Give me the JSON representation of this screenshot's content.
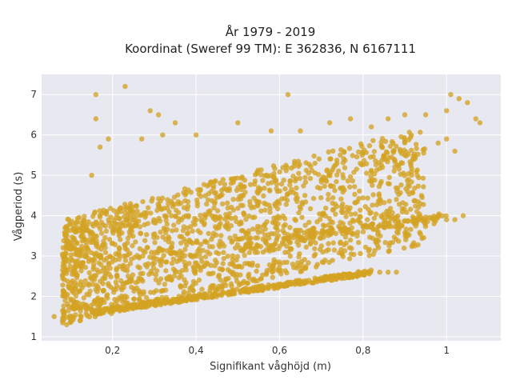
{
  "chart_data": {
    "type": "scatter",
    "title_lines": [
      "År 1979 - 2019",
      "Koordinat (Sweref 99 TM): E 362836, N 6167111"
    ],
    "xlabel": "Signifikant våghöjd (m)",
    "ylabel": "Vågperiod (s)",
    "xlim": [
      0.03,
      1.13
    ],
    "ylim": [
      0.9,
      7.5
    ],
    "x_ticks": [
      0.2,
      0.4,
      0.6,
      0.8,
      1.0
    ],
    "x_tick_labels": [
      "0,2",
      "0,4",
      "0,6",
      "0,8",
      "1"
    ],
    "y_ticks": [
      1,
      2,
      3,
      4,
      5,
      6,
      7
    ],
    "y_tick_labels": [
      "1",
      "2",
      "3",
      "4",
      "5",
      "6",
      "7"
    ],
    "grid": true,
    "background": "#e8e8f0",
    "marker_color": "#d4a323",
    "clusters": [
      {
        "x_range": [
          0.08,
          0.95
        ],
        "y_low": [
          1.3,
          3.3
        ],
        "y_high": [
          3.9,
          6.2
        ]
      },
      {
        "x_range": [
          0.15,
          0.82
        ],
        "band_y": [
          1.6,
          2.6
        ]
      },
      {
        "x_range": [
          0.5,
          1.0
        ],
        "band_y": [
          3.2,
          4.0
        ]
      }
    ],
    "points": [
      [
        0.06,
        1.5
      ],
      [
        0.08,
        1.4
      ],
      [
        0.09,
        1.3
      ],
      [
        0.1,
        1.9
      ],
      [
        0.11,
        1.8
      ],
      [
        0.15,
        5.0
      ],
      [
        0.16,
        7.0
      ],
      [
        0.16,
        6.4
      ],
      [
        0.23,
        7.2
      ],
      [
        0.62,
        7.0
      ],
      [
        0.35,
        6.3
      ],
      [
        0.29,
        6.6
      ],
      [
        0.31,
        6.5
      ],
      [
        0.19,
        5.9
      ],
      [
        0.17,
        5.7
      ],
      [
        0.27,
        5.9
      ],
      [
        0.32,
        6.0
      ],
      [
        0.4,
        6.0
      ],
      [
        0.5,
        6.3
      ],
      [
        0.58,
        6.1
      ],
      [
        0.65,
        6.1
      ],
      [
        0.72,
        6.3
      ],
      [
        0.77,
        6.4
      ],
      [
        0.82,
        6.2
      ],
      [
        0.86,
        6.4
      ],
      [
        0.9,
        6.5
      ],
      [
        0.95,
        6.5
      ],
      [
        1.0,
        6.6
      ],
      [
        1.01,
        7.0
      ],
      [
        1.03,
        6.9
      ],
      [
        1.05,
        6.8
      ],
      [
        1.07,
        6.4
      ],
      [
        1.08,
        6.3
      ],
      [
        1.0,
        5.9
      ],
      [
        1.02,
        5.6
      ],
      [
        0.98,
        5.8
      ],
      [
        0.93,
        5.0
      ],
      [
        0.88,
        4.4
      ],
      [
        0.94,
        4.5
      ],
      [
        0.97,
        3.8
      ],
      [
        1.0,
        3.9
      ],
      [
        1.04,
        4.0
      ],
      [
        1.02,
        3.9
      ],
      [
        0.84,
        2.6
      ],
      [
        0.86,
        2.6
      ],
      [
        0.88,
        2.6
      ],
      [
        0.8,
        2.6
      ],
      [
        0.79,
        2.6
      ]
    ]
  }
}
